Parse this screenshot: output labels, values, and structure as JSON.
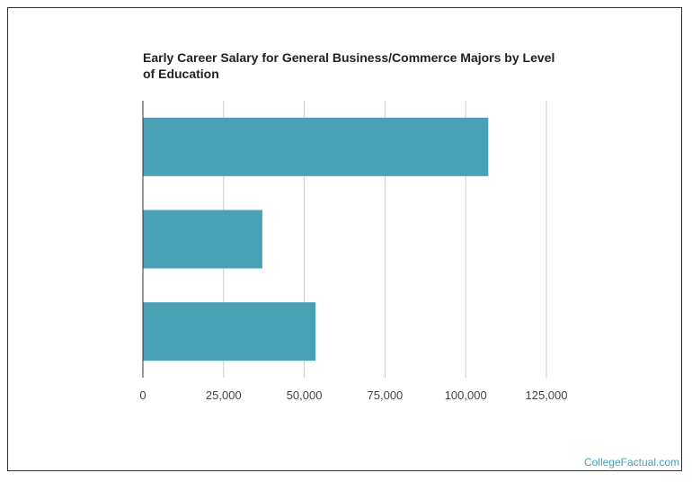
{
  "chart_data": {
    "type": "bar",
    "orientation": "horizontal",
    "title_lines": [
      "Early Career Salary for General Business/Commerce Majors by Level",
      "of Education"
    ],
    "categories": [
      "",
      "",
      ""
    ],
    "values": [
      107000,
      37000,
      53500
    ],
    "xlabel": "",
    "ylabel": "",
    "xlim": [
      0,
      125000
    ],
    "x_ticks": [
      0,
      25000,
      50000,
      75000,
      100000,
      125000
    ],
    "x_tick_labels": [
      "0",
      "25,000",
      "50,000",
      "75,000",
      "100,000",
      "125,000"
    ],
    "grid": "vertical",
    "bar_color": "#4aa0b4",
    "grid_color": "#cccccc"
  },
  "watermark": "CollegeFactual.com"
}
